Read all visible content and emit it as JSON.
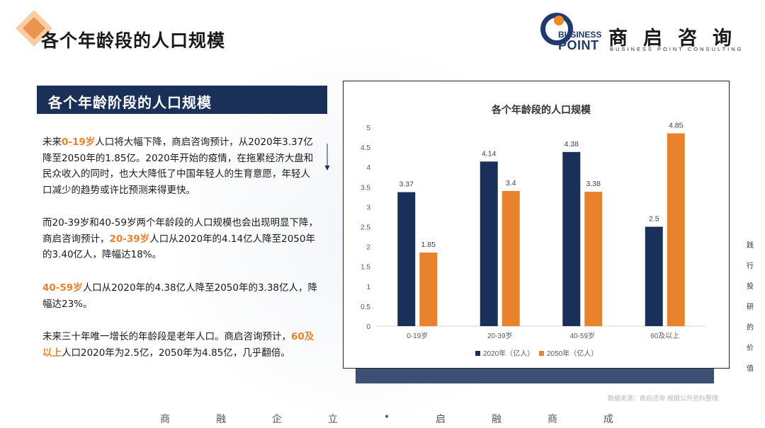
{
  "page": {
    "title": "各个年龄段的人口规模"
  },
  "logo": {
    "en_top": "BUSINESS",
    "en_bottom": "POINT",
    "cn_name": "商启咨询",
    "en_full": "BUSINESS POINT CONSULTING"
  },
  "section": {
    "title": "各个年龄阶段的人口规模"
  },
  "paragraphs": [
    {
      "segments": [
        {
          "text": "未来",
          "hl": false
        },
        {
          "text": "0-19岁",
          "hl": true
        },
        {
          "text": "人口将大幅下降，商启咨询预计，从2020年3.37亿降至2050年的1.85亿。2020年开始的疫情，在拖累经济大盘和民众收入的同时，也大大降低了中国年轻人的生育意愿，年轻人口减少的趋势或许比预测来得更快。",
          "hl": false
        }
      ]
    },
    {
      "segments": [
        {
          "text": "而20-39岁和40-59岁两个年龄段的人口规模也会出现明显下降，商启咨询预计，",
          "hl": false
        },
        {
          "text": "20-39岁",
          "hl": true
        },
        {
          "text": "人口从2020年的4.14亿人降至2050年的3.40亿人，降幅达18%。",
          "hl": false
        }
      ]
    },
    {
      "segments": [
        {
          "text": "40-59岁",
          "hl": true
        },
        {
          "text": "人口从2020年的4.38亿人降至2050年的3.38亿人，降幅达23%。",
          "hl": false
        }
      ]
    },
    {
      "segments": [
        {
          "text": "未来三十年唯一增长的年龄段是老年人口。商启咨询预计，",
          "hl": false
        },
        {
          "text": "60及以上",
          "hl": true
        },
        {
          "text": "人口2020年为2.5亿，2050年为4.85亿，几乎翻倍。",
          "hl": false
        }
      ]
    }
  ],
  "colors": {
    "navy": "#1b3058",
    "orange": "#e8822d",
    "highlight": "#e8822d"
  },
  "chart_data": {
    "type": "bar",
    "title": "各个年龄段的人口规模",
    "categories": [
      "0-19岁",
      "20-39岁",
      "40-59岁",
      "60及以上"
    ],
    "series": [
      {
        "name": "2020年（亿人）",
        "values": [
          3.37,
          4.14,
          4.38,
          2.5
        ],
        "color": "#1b3058"
      },
      {
        "name": "2050年（亿人）",
        "values": [
          1.85,
          3.4,
          3.38,
          4.85
        ],
        "color": "#e8822d"
      }
    ],
    "yticks": [
      "0",
      "0.5",
      "1",
      "1.5",
      "2",
      "2.5",
      "3",
      "3.5",
      "4",
      "4.5",
      "5"
    ],
    "ylim": [
      0,
      5
    ],
    "legend": "bottom",
    "grid": false
  },
  "source": "数据来源：商启咨询 根据公开资料整理",
  "side_text": [
    "践",
    "行",
    "投",
    "研",
    "的",
    "价",
    "值"
  ],
  "footer": [
    "商",
    "融",
    "企",
    "立",
    "•",
    "启",
    "融",
    "商",
    "成"
  ]
}
